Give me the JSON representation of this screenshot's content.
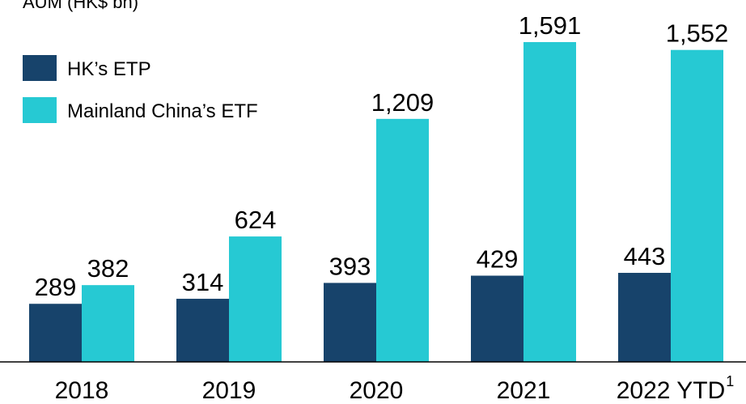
{
  "chart_data": {
    "type": "bar",
    "title": "AUM (HK$ bn)",
    "categories": [
      "2018",
      "2019",
      "2020",
      "2021",
      "2022 YTD"
    ],
    "category_notes": [
      null,
      null,
      null,
      null,
      "1"
    ],
    "series": [
      {
        "name": "HK’s ETP",
        "color": "#17436b",
        "values": [
          289,
          314,
          393,
          429,
          443
        ],
        "value_labels": [
          "289",
          "314",
          "393",
          "429",
          "443"
        ]
      },
      {
        "name": "Mainland China’s ETF",
        "color": "#26c9d3",
        "values": [
          382,
          624,
          1209,
          1591,
          1552
        ],
        "value_labels": [
          "382",
          "624",
          "1,209",
          "1,591",
          "1,552"
        ]
      }
    ],
    "legend": "upper left",
    "grid": false
  }
}
